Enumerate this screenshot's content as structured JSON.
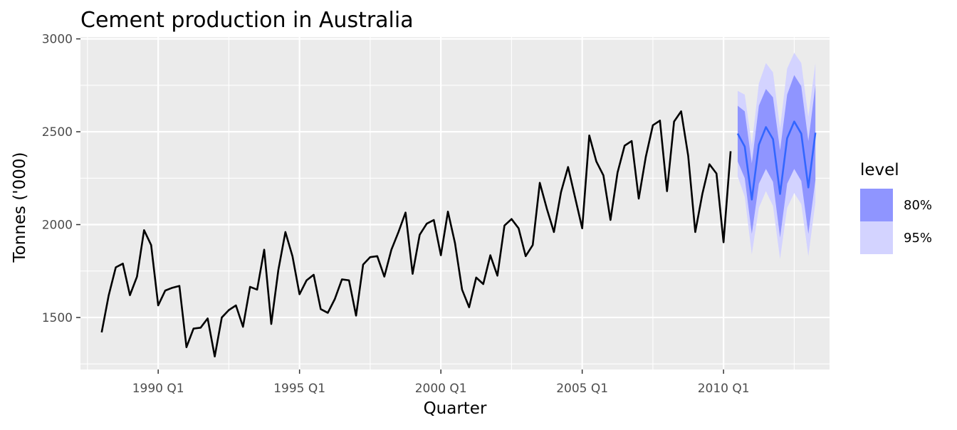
{
  "chart_data": {
    "type": "line",
    "title": "Cement production in Australia",
    "xlabel": "Quarter",
    "ylabel": "Tonnes ('000)",
    "x_ticks": [
      "1990 Q1",
      "1995 Q1",
      "2000 Q1",
      "2005 Q1",
      "2010 Q1"
    ],
    "y_ticks": [
      1500,
      2000,
      2500,
      3000
    ],
    "xlim": [
      "1987 Q2",
      "2013 Q4"
    ],
    "ylim": [
      1220,
      3010
    ],
    "grid": true,
    "legend_position": "right",
    "legend_title": "level",
    "colors": {
      "history_line": "#000000",
      "forecast_line": "#3366ff",
      "band_80": "#8f95ff",
      "band_95": "#d3d3ff",
      "panel_bg": "#ebebeb",
      "grid": "#ffffff"
    },
    "series": [
      {
        "type": "line",
        "x": [
          "1988 Q1",
          "1988 Q2",
          "1988 Q3",
          "1988 Q4",
          "1989 Q1",
          "1989 Q2",
          "1989 Q3",
          "1989 Q4",
          "1990 Q1",
          "1990 Q2",
          "1990 Q3",
          "1990 Q4",
          "1991 Q1",
          "1991 Q2",
          "1991 Q3",
          "1991 Q4",
          "1992 Q1",
          "1992 Q2",
          "1992 Q3",
          "1992 Q4",
          "1993 Q1",
          "1993 Q2",
          "1993 Q3",
          "1993 Q4",
          "1994 Q1",
          "1994 Q2",
          "1994 Q3",
          "1994 Q4",
          "1995 Q1",
          "1995 Q2",
          "1995 Q3",
          "1995 Q4",
          "1996 Q1",
          "1996 Q2",
          "1996 Q3",
          "1996 Q4",
          "1997 Q1",
          "1997 Q2",
          "1997 Q3",
          "1997 Q4",
          "1998 Q1",
          "1998 Q2",
          "1998 Q3",
          "1998 Q4",
          "1999 Q1",
          "1999 Q2",
          "1999 Q3",
          "1999 Q4",
          "2000 Q1",
          "2000 Q2",
          "2000 Q3",
          "2000 Q4",
          "2001 Q1",
          "2001 Q2",
          "2001 Q3",
          "2001 Q4",
          "2002 Q1",
          "2002 Q2",
          "2002 Q3",
          "2002 Q4",
          "2003 Q1",
          "2003 Q2",
          "2003 Q3",
          "2003 Q4",
          "2004 Q1",
          "2004 Q2",
          "2004 Q3",
          "2004 Q4",
          "2005 Q1",
          "2005 Q2",
          "2005 Q3",
          "2005 Q4",
          "2006 Q1",
          "2006 Q2",
          "2006 Q3",
          "2006 Q4",
          "2007 Q1",
          "2007 Q2",
          "2007 Q3",
          "2007 Q4",
          "2008 Q1",
          "2008 Q2",
          "2008 Q3",
          "2008 Q4",
          "2009 Q1",
          "2009 Q2",
          "2009 Q3",
          "2009 Q4",
          "2010 Q1",
          "2010 Q2"
        ],
        "values": [
          1420,
          1620,
          1770,
          1790,
          1620,
          1720,
          1970,
          1890,
          1565,
          1645,
          1660,
          1670,
          1340,
          1440,
          1445,
          1495,
          1290,
          1500,
          1540,
          1565,
          1450,
          1665,
          1650,
          1865,
          1465,
          1755,
          1960,
          1830,
          1625,
          1700,
          1730,
          1545,
          1525,
          1600,
          1705,
          1700,
          1510,
          1785,
          1825,
          1830,
          1720,
          1865,
          1960,
          2065,
          1735,
          1945,
          2005,
          2025,
          1835,
          2070,
          1900,
          1650,
          1555,
          1715,
          1680,
          1835,
          1725,
          1995,
          2030,
          1980,
          1830,
          1890,
          2225,
          2085,
          1960,
          2175,
          2310,
          2145,
          1980,
          2480,
          2340,
          2265,
          2025,
          2280,
          2425,
          2450,
          2140,
          2365,
          2535,
          2560,
          2180,
          2555,
          2610,
          2370,
          1960,
          2165,
          2325,
          2275,
          1905,
          2395
        ]
      },
      {
        "type": "forecast",
        "legend": [
          {
            "label": "80%",
            "color": "#8f95ff"
          },
          {
            "label": "95%",
            "color": "#d3d3ff"
          }
        ],
        "x": [
          "2010 Q3",
          "2010 Q4",
          "2011 Q1",
          "2011 Q2",
          "2011 Q3",
          "2011 Q4",
          "2012 Q1",
          "2012 Q2",
          "2012 Q3",
          "2012 Q4",
          "2013 Q1",
          "2013 Q2"
        ],
        "values": [
          2490,
          2420,
          2135,
          2430,
          2525,
          2460,
          2165,
          2465,
          2555,
          2490,
          2200,
          2495
        ],
        "lower_80": [
          2340,
          2250,
          1950,
          2220,
          2300,
          2230,
          1930,
          2220,
          2300,
          2235,
          1950,
          2240
        ],
        "upper_80": [
          2640,
          2610,
          2330,
          2640,
          2730,
          2685,
          2400,
          2700,
          2805,
          2745,
          2450,
          2750
        ],
        "lower_95": [
          2260,
          2150,
          1840,
          2090,
          2180,
          2100,
          1815,
          2090,
          2170,
          2110,
          1830,
          2120
        ],
        "upper_95": [
          2720,
          2700,
          2430,
          2760,
          2870,
          2820,
          2520,
          2840,
          2925,
          2870,
          2580,
          2870
        ]
      }
    ]
  }
}
